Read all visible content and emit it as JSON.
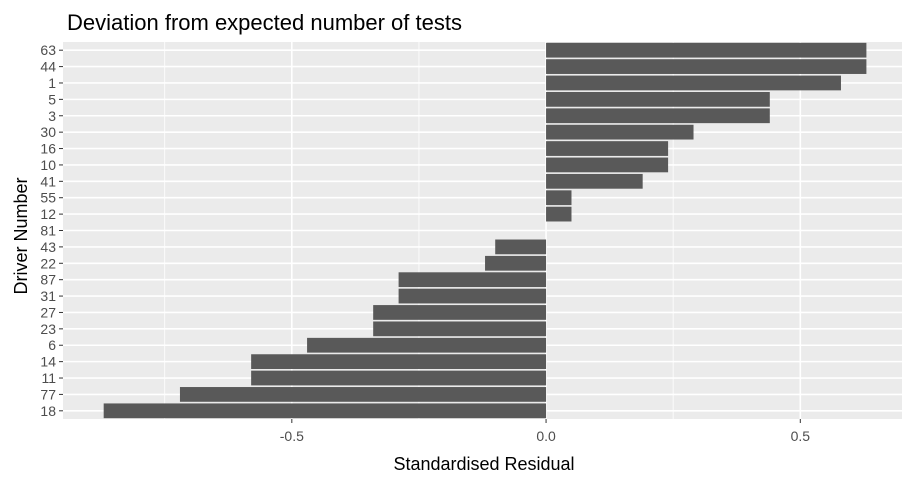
{
  "chart_data": {
    "type": "bar",
    "orientation": "horizontal",
    "title": "Deviation from expected number of tests",
    "xlabel": "Standardised Residual",
    "ylabel": "Driver Number",
    "categories": [
      "63",
      "44",
      "1",
      "5",
      "3",
      "30",
      "16",
      "10",
      "41",
      "55",
      "12",
      "81",
      "43",
      "22",
      "87",
      "31",
      "27",
      "23",
      "6",
      "14",
      "11",
      "77",
      "18"
    ],
    "values": [
      0.63,
      0.63,
      0.58,
      0.44,
      0.44,
      0.29,
      0.24,
      0.24,
      0.19,
      0.05,
      0.05,
      0.0,
      -0.1,
      -0.12,
      -0.29,
      -0.29,
      -0.34,
      -0.34,
      -0.47,
      -0.58,
      -0.58,
      -0.72,
      -0.87
    ],
    "xlim": [
      -0.95,
      0.7
    ],
    "xticks": [
      -0.5,
      0.0,
      0.5
    ],
    "xtick_labels": [
      "-0.5",
      "0.0",
      "0.5"
    ],
    "grid": true,
    "colors": {
      "bar": "#595959",
      "panel": "#ebebeb",
      "grid": "#ffffff"
    }
  }
}
